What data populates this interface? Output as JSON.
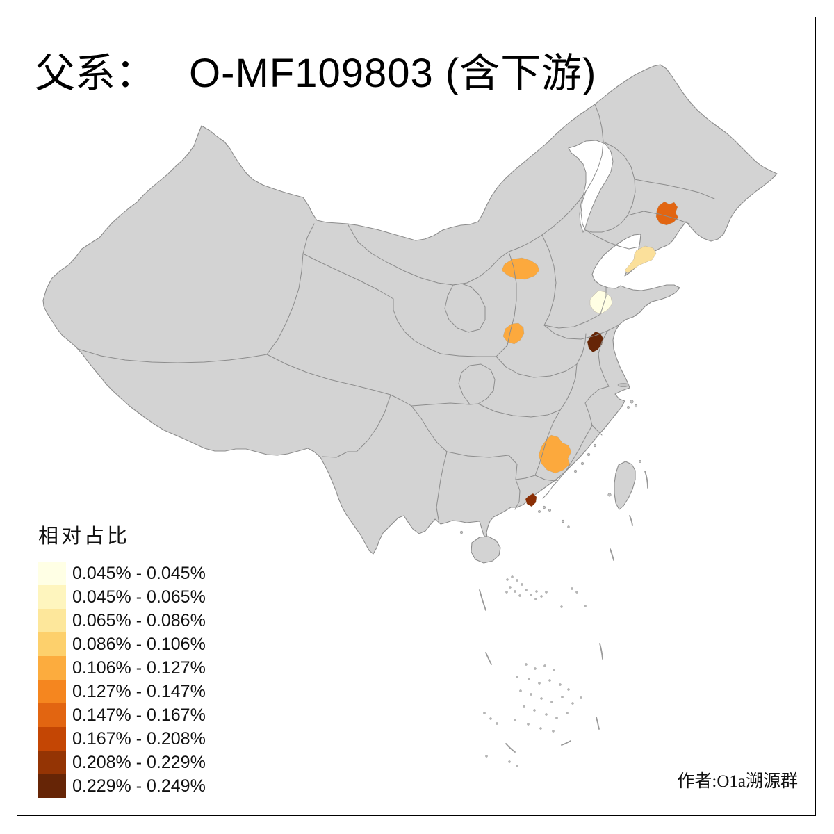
{
  "title": {
    "prefix": "父系：",
    "main": "O-MF109803 (含下游)"
  },
  "legend": {
    "title": "相对占比",
    "items": [
      {
        "label": "0.045% - 0.045%",
        "color": "#FFFFE5"
      },
      {
        "label": "0.045% - 0.065%",
        "color": "#FEF5BE"
      },
      {
        "label": "0.065% - 0.086%",
        "color": "#FDE79B"
      },
      {
        "label": "0.086% - 0.106%",
        "color": "#FDD06C"
      },
      {
        "label": "0.106% - 0.127%",
        "color": "#FCAC3E"
      },
      {
        "label": "0.127% - 0.147%",
        "color": "#F5861F"
      },
      {
        "label": "0.147% - 0.167%",
        "color": "#E26511"
      },
      {
        "label": "0.167% - 0.208%",
        "color": "#C44604"
      },
      {
        "label": "0.208% - 0.229%",
        "color": "#943404"
      },
      {
        "label": "0.229% - 0.249%",
        "color": "#662506"
      }
    ]
  },
  "attribution": "作者:O1a溯源群",
  "map": {
    "land_color": "#D3D3D3",
    "border_color": "#8C8C8C",
    "sea_color": "#FFFFFF",
    "highlighted_regions": [
      {
        "id": "central-liaoning",
        "color": "#E26511"
      },
      {
        "id": "liaodong-peninsula",
        "color": "#FBE09B"
      },
      {
        "id": "north-shanxi",
        "color": "#FCA93D"
      },
      {
        "id": "central-shandong",
        "color": "#FFFEE3"
      },
      {
        "id": "north-shaanxi",
        "color": "#FCA93D"
      },
      {
        "id": "north-jiangsu",
        "color": "#662506"
      },
      {
        "id": "south-hunan",
        "color": "#FCA93D"
      },
      {
        "id": "east-guangdong-coast",
        "color": "#8B2F06"
      }
    ]
  }
}
